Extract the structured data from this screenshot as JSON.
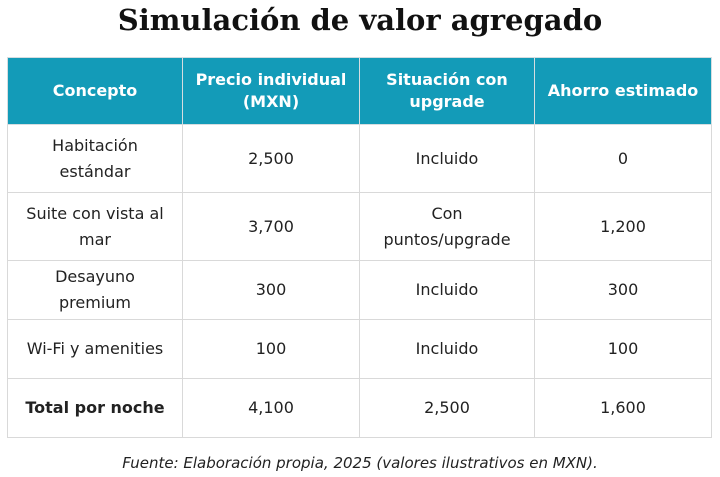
{
  "title": "Simulación de valor agregado",
  "table": {
    "headers": {
      "concepto": "Concepto",
      "precio": "Precio individual (MXN)",
      "situacion": "Situación con upgrade",
      "ahorro": "Ahorro estimado"
    },
    "rows": [
      {
        "concepto": "Habitación estándar",
        "precio": "2,500",
        "situacion": "Incluido",
        "ahorro": "0"
      },
      {
        "concepto": "Suite con vista al mar",
        "precio": "3,700",
        "situacion": "Con puntos/upgrade",
        "ahorro": "1,200"
      },
      {
        "concepto": "Desayuno premium",
        "precio": "300",
        "situacion": "Incluido",
        "ahorro": "300"
      },
      {
        "concepto": "Wi-Fi y amenities",
        "precio": "100",
        "situacion": "Incluido",
        "ahorro": "100"
      },
      {
        "concepto": "Total por noche",
        "precio": "4,100",
        "situacion": "2,500",
        "ahorro": "1,600"
      }
    ]
  },
  "source": "Fuente: Elaboración propia, 2025 (valores ilustrativos en MXN).",
  "colors": {
    "header_bg": "#139bb8",
    "header_text": "#ffffff",
    "border": "#d9d9d9"
  }
}
